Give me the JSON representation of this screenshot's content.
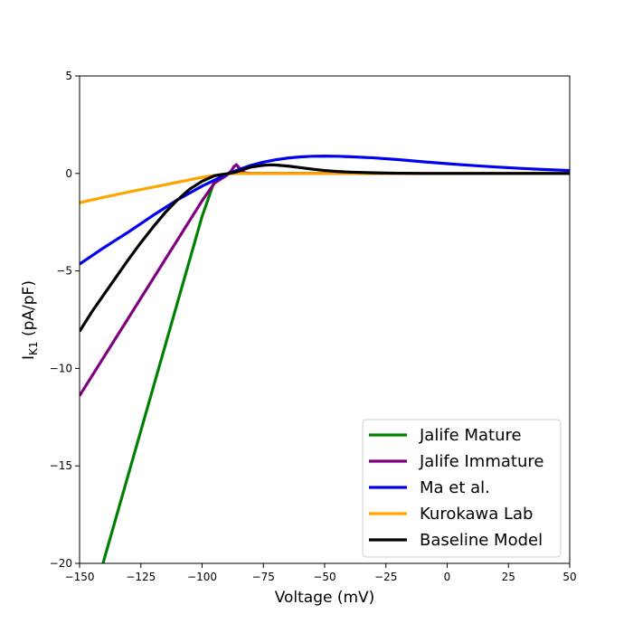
{
  "chart_data": {
    "type": "line",
    "xlabel": "Voltage (mV)",
    "ylabel_main": "I",
    "ylabel_sub": "K1",
    "ylabel_rest": " (pA/pF)",
    "xlim": [
      -150,
      50
    ],
    "ylim": [
      -20,
      5
    ],
    "xticks": [
      -150,
      -125,
      -100,
      -75,
      -50,
      -25,
      0,
      25,
      50
    ],
    "yticks": [
      -20,
      -15,
      -10,
      -5,
      0,
      5
    ],
    "xtick_labels": [
      "−150",
      "−125",
      "−100",
      "−75",
      "−50",
      "−25",
      "0",
      "25",
      "50"
    ],
    "ytick_labels": [
      "−20",
      "−15",
      "−10",
      "−5",
      "0",
      "5"
    ],
    "grid": false,
    "legend_position": "bottom-right",
    "series": [
      {
        "name": "Jalife Mature",
        "color": "#008000",
        "x": [
          -150,
          -145,
          -140,
          -135,
          -130,
          -125,
          -120,
          -115,
          -110,
          -105,
          -100,
          -95,
          -90,
          -88,
          -86,
          -84,
          -82,
          -80,
          -75,
          -70,
          -60,
          -50,
          -25,
          0,
          25,
          50
        ],
        "y": [
          -24.2,
          -22.0,
          -19.8,
          -17.6,
          -15.4,
          -13.2,
          -11.0,
          -8.8,
          -6.6,
          -4.4,
          -2.2,
          -0.4,
          -0.05,
          0.0,
          0.0,
          0.0,
          0.0,
          0.0,
          0.0,
          0.0,
          0.0,
          0.0,
          0.0,
          0.0,
          0.0,
          0.0
        ]
      },
      {
        "name": "Jalife Immature",
        "color": "#800080",
        "x": [
          -150,
          -145,
          -140,
          -135,
          -130,
          -125,
          -120,
          -115,
          -110,
          -105,
          -100,
          -95,
          -90,
          -88,
          -87,
          -86,
          -85,
          -84,
          -82,
          -80,
          -75,
          -70,
          -60,
          -50,
          -25,
          0,
          25,
          50
        ],
        "y": [
          -11.4,
          -10.4,
          -9.4,
          -8.4,
          -7.4,
          -6.4,
          -5.4,
          -4.4,
          -3.4,
          -2.4,
          -1.4,
          -0.5,
          -0.1,
          0.15,
          0.35,
          0.45,
          0.3,
          0.1,
          0.02,
          0.0,
          0.0,
          0.0,
          0.0,
          0.0,
          0.0,
          0.0,
          0.0,
          0.0
        ]
      },
      {
        "name": "Ma et al.",
        "color": "#0000ee",
        "x": [
          -150,
          -140,
          -130,
          -120,
          -110,
          -100,
          -95,
          -90,
          -85,
          -80,
          -75,
          -70,
          -65,
          -60,
          -55,
          -50,
          -45,
          -40,
          -30,
          -20,
          -10,
          0,
          10,
          20,
          30,
          40,
          50
        ],
        "y": [
          -4.65,
          -3.8,
          -3.0,
          -2.15,
          -1.35,
          -0.65,
          -0.35,
          -0.05,
          0.2,
          0.42,
          0.58,
          0.7,
          0.79,
          0.85,
          0.88,
          0.89,
          0.88,
          0.86,
          0.8,
          0.71,
          0.6,
          0.5,
          0.41,
          0.33,
          0.26,
          0.2,
          0.15
        ]
      },
      {
        "name": "Kurokawa Lab",
        "color": "#ffa500",
        "x": [
          -150,
          -140,
          -130,
          -120,
          -110,
          -100,
          -95,
          -90,
          -87,
          -85,
          -80,
          -70,
          -60,
          -50,
          -25,
          0,
          25,
          50
        ],
        "y": [
          -1.5,
          -1.22,
          -0.95,
          -0.7,
          -0.45,
          -0.2,
          -0.1,
          -0.02,
          0.0,
          0.0,
          0.0,
          0.0,
          0.0,
          0.0,
          0.0,
          0.0,
          0.0,
          0.0
        ]
      },
      {
        "name": "Baseline Model",
        "color": "#000000",
        "x": [
          -150,
          -145,
          -140,
          -135,
          -130,
          -125,
          -120,
          -115,
          -110,
          -105,
          -100,
          -95,
          -90,
          -87,
          -85,
          -82,
          -80,
          -75,
          -72,
          -70,
          -65,
          -60,
          -55,
          -50,
          -45,
          -40,
          -30,
          -20,
          -10,
          0,
          25,
          50
        ],
        "y": [
          -8.1,
          -7.1,
          -6.2,
          -5.3,
          -4.4,
          -3.55,
          -2.75,
          -2.0,
          -1.35,
          -0.8,
          -0.4,
          -0.12,
          -0.02,
          0.05,
          0.12,
          0.25,
          0.33,
          0.42,
          0.44,
          0.43,
          0.38,
          0.3,
          0.22,
          0.15,
          0.1,
          0.07,
          0.03,
          0.01,
          0.0,
          0.0,
          0.0,
          0.0
        ]
      }
    ]
  }
}
